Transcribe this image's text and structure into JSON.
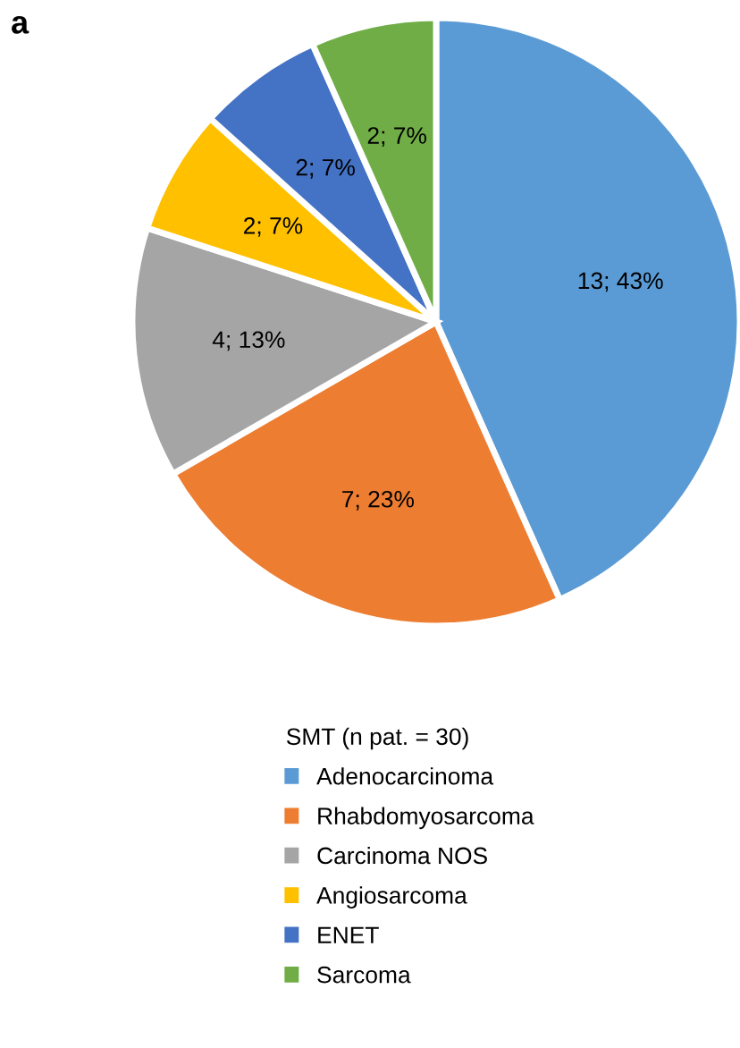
{
  "chart_data": {
    "type": "pie",
    "categories": [
      "Adenocarcinoma",
      "Rhabdomyosarcoma",
      "Carcinoma NOS",
      "Angiosarcoma",
      "ENET",
      "Sarcoma"
    ],
    "values": [
      13,
      7,
      4,
      2,
      2,
      2
    ],
    "value_labels": [
      "13; 43%",
      "7; 23%",
      "4; 13%",
      "2; 7%",
      "2; 7%",
      "2; 7%"
    ],
    "colors": [
      "#5b9bd5",
      "#ed7d31",
      "#a5a5a5",
      "#ffc000",
      "#4472c4",
      "#70ad47"
    ],
    "legend_title": "SMT (n pat. = 30)",
    "legend": "bottom",
    "annotations": [
      "a"
    ]
  }
}
